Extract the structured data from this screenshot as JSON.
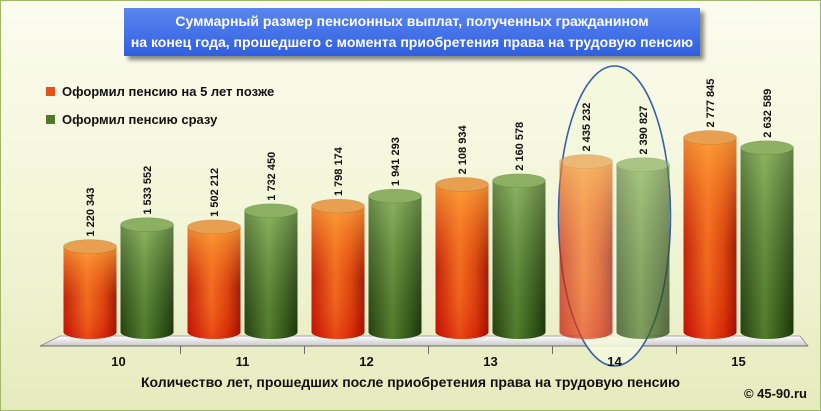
{
  "title": {
    "line1": "Суммарный размер  пенсионных  выплат, полученных гражданином",
    "line2": "на конец года, прошедшего с момента приобретения права на трудовую пенсию"
  },
  "watermark": "© 45-90.ru",
  "colors": {
    "title_bg": "#3a68e6",
    "series_late": "#e8501a",
    "series_now": "#4f7a28",
    "highlight_ellipse": "#3a5fa8",
    "highlight_fill": "#f3f7dc"
  },
  "chart_data": {
    "type": "bar",
    "style": "3d-cylinder",
    "xlabel": "Количество лет, прошедших после приобретения права  на трудовую  пенсию",
    "ylabel": "",
    "ylim": [
      0,
      3000000
    ],
    "categories": [
      "10",
      "11",
      "12",
      "13",
      "14",
      "15"
    ],
    "series": [
      {
        "name": "Оформил пенсию на 5 лет позже",
        "values": [
          1220343,
          1502212,
          1798174,
          2108934,
          2435232,
          2777845
        ],
        "labels": [
          "1 220 343",
          "1 502 212",
          "1 798 174",
          "2 108 934",
          "2 435 232",
          "2 777 845"
        ]
      },
      {
        "name": "Оформил пенсию сразу",
        "values": [
          1533552,
          1732450,
          1941293,
          2160578,
          2390827,
          2632589
        ],
        "labels": [
          "1 533 552",
          "1 732 450",
          "1 941 293",
          "2 160 578",
          "2 390 827",
          "2 632 589"
        ]
      }
    ],
    "highlight_category": "14",
    "legend_position": "top-left"
  }
}
